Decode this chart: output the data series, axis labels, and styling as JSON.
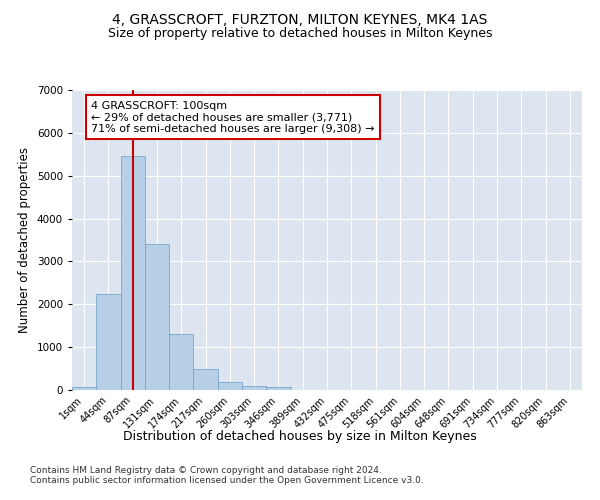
{
  "title1": "4, GRASSCROFT, FURZTON, MILTON KEYNES, MK4 1AS",
  "title2": "Size of property relative to detached houses in Milton Keynes",
  "xlabel": "Distribution of detached houses by size in Milton Keynes",
  "ylabel": "Number of detached properties",
  "categories": [
    "1sqm",
    "44sqm",
    "87sqm",
    "131sqm",
    "174sqm",
    "217sqm",
    "260sqm",
    "303sqm",
    "346sqm",
    "389sqm",
    "432sqm",
    "475sqm",
    "518sqm",
    "561sqm",
    "604sqm",
    "648sqm",
    "691sqm",
    "734sqm",
    "777sqm",
    "820sqm",
    "863sqm"
  ],
  "values": [
    80,
    2250,
    5450,
    3400,
    1300,
    480,
    185,
    100,
    60,
    5,
    0,
    0,
    0,
    0,
    0,
    0,
    0,
    0,
    0,
    0,
    0
  ],
  "bar_color": "#b8cfe8",
  "bar_edgecolor": "#6a9cc0",
  "vline_x": 2.0,
  "vline_color": "#cc0000",
  "annotation_text": "4 GRASSCROFT: 100sqm\n← 29% of detached houses are smaller (3,771)\n71% of semi-detached houses are larger (9,308) →",
  "annotation_box_color": "#ffffff",
  "annotation_box_edgecolor": "#cc0000",
  "ylim": [
    0,
    7000
  ],
  "yticks": [
    0,
    1000,
    2000,
    3000,
    4000,
    5000,
    6000,
    7000
  ],
  "background_color": "#dde6f0",
  "footer_text": "Contains HM Land Registry data © Crown copyright and database right 2024.\nContains public sector information licensed under the Open Government Licence v3.0.",
  "title1_fontsize": 10,
  "title2_fontsize": 9,
  "xlabel_fontsize": 9,
  "ylabel_fontsize": 8.5,
  "annotation_fontsize": 8
}
